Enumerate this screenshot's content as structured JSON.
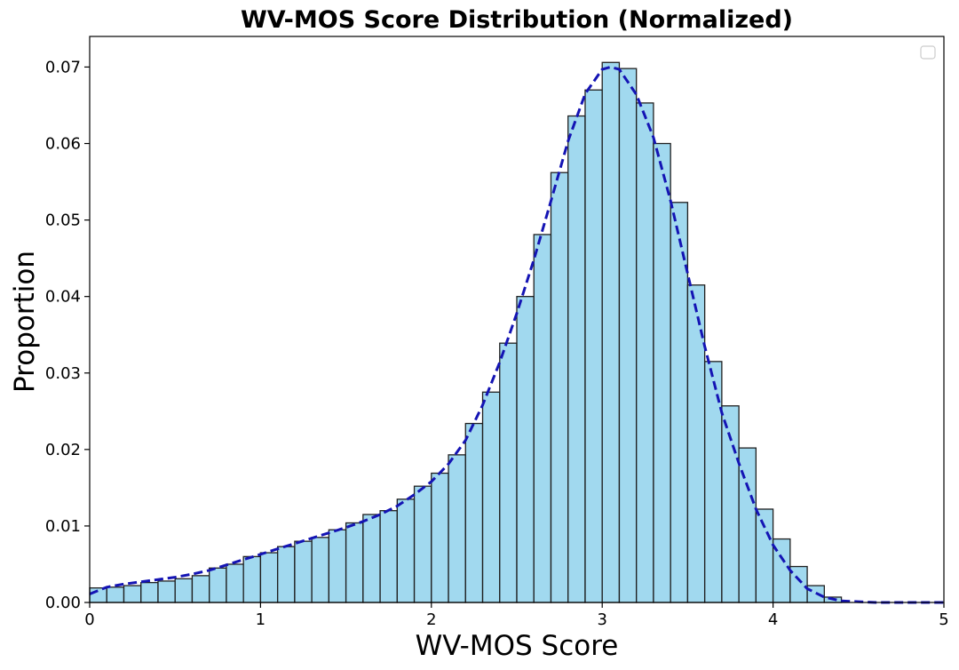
{
  "chart_data": {
    "type": "bar",
    "title": "WV-MOS Score Distribution (Normalized)",
    "xlabel": "WV-MOS Score",
    "ylabel": "Proportion",
    "xlim": [
      0,
      5
    ],
    "ylim": [
      0,
      0.074
    ],
    "xticks": [
      "0",
      "1",
      "2",
      "3",
      "4",
      "5"
    ],
    "yticks": [
      "0.00",
      "0.01",
      "0.02",
      "0.03",
      "0.04",
      "0.05",
      "0.06",
      "0.07"
    ],
    "bin_width": 0.1,
    "bin_starts": [
      0.0,
      0.1,
      0.2,
      0.3,
      0.4,
      0.5,
      0.6,
      0.7,
      0.8,
      0.9,
      1.0,
      1.1,
      1.2,
      1.3,
      1.4,
      1.5,
      1.6,
      1.7,
      1.8,
      1.9,
      2.0,
      2.1,
      2.2,
      2.3,
      2.4,
      2.5,
      2.6,
      2.7,
      2.8,
      2.9,
      3.0,
      3.1,
      3.2,
      3.3,
      3.4,
      3.5,
      3.6,
      3.7,
      3.8,
      3.9,
      4.0,
      4.1,
      4.2,
      4.3
    ],
    "values": [
      0.0019,
      0.002,
      0.0022,
      0.0026,
      0.0028,
      0.0031,
      0.0035,
      0.0045,
      0.005,
      0.006,
      0.0065,
      0.0073,
      0.008,
      0.0085,
      0.0095,
      0.0104,
      0.0115,
      0.012,
      0.0135,
      0.0152,
      0.0169,
      0.0193,
      0.0234,
      0.0275,
      0.0339,
      0.04,
      0.0481,
      0.0562,
      0.0636,
      0.067,
      0.0706,
      0.0698,
      0.0653,
      0.06,
      0.0523,
      0.0415,
      0.0315,
      0.0257,
      0.0202,
      0.0122,
      0.0083,
      0.0047,
      0.0022,
      0.0007
    ],
    "density_curve": {
      "style": "dashed",
      "color": "#1414b4",
      "x": [
        0.0,
        0.1,
        0.2,
        0.3,
        0.4,
        0.5,
        0.6,
        0.7,
        0.8,
        0.9,
        1.0,
        1.1,
        1.2,
        1.3,
        1.4,
        1.5,
        1.6,
        1.7,
        1.8,
        1.9,
        2.0,
        2.1,
        2.2,
        2.3,
        2.4,
        2.5,
        2.6,
        2.7,
        2.8,
        2.9,
        3.0,
        3.05,
        3.1,
        3.2,
        3.3,
        3.4,
        3.5,
        3.6,
        3.7,
        3.8,
        3.9,
        4.0,
        4.1,
        4.2,
        4.3,
        4.4,
        4.5,
        4.6,
        4.8,
        5.0
      ],
      "y": [
        0.0011,
        0.002,
        0.0024,
        0.0027,
        0.003,
        0.0033,
        0.0037,
        0.0042,
        0.0049,
        0.0056,
        0.0063,
        0.007,
        0.0077,
        0.0084,
        0.0091,
        0.0098,
        0.0106,
        0.0115,
        0.0126,
        0.0141,
        0.0158,
        0.0181,
        0.0212,
        0.0258,
        0.0314,
        0.0378,
        0.0448,
        0.0525,
        0.0603,
        0.0665,
        0.0697,
        0.07,
        0.0697,
        0.0664,
        0.0608,
        0.0525,
        0.043,
        0.0335,
        0.0248,
        0.0182,
        0.0122,
        0.0075,
        0.0042,
        0.0018,
        0.0007,
        0.0002,
        0.0001,
        0.0,
        0.0,
        0.0
      ]
    },
    "bar_color": "#87ceeb",
    "bar_edge_color": "#1f1f1f",
    "legend_placement": "top-right",
    "grid": false
  }
}
